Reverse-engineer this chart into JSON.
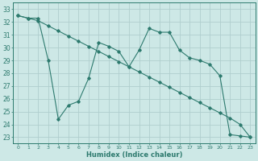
{
  "xlabel": "Humidex (Indice chaleur)",
  "ylabel": "",
  "background_color": "#cde8e6",
  "grid_color": "#b0cece",
  "line_color": "#2d7a6e",
  "xlim": [
    -0.5,
    23.5
  ],
  "ylim": [
    22.5,
    33.5
  ],
  "yticks": [
    23,
    24,
    25,
    26,
    27,
    28,
    29,
    30,
    31,
    32,
    33
  ],
  "xticks": [
    0,
    1,
    2,
    3,
    4,
    5,
    6,
    7,
    8,
    9,
    10,
    11,
    12,
    13,
    14,
    15,
    16,
    17,
    18,
    19,
    20,
    21,
    22,
    23
  ],
  "line1_x": [
    0,
    1,
    2,
    3,
    4,
    5,
    6,
    7,
    8,
    9,
    10,
    11,
    12,
    13,
    14,
    15,
    16,
    17,
    18,
    19,
    20,
    21,
    22,
    23
  ],
  "line1_y": [
    32.5,
    32.3,
    32.3,
    29.0,
    24.4,
    25.5,
    25.8,
    27.6,
    30.4,
    30.1,
    29.7,
    28.5,
    29.8,
    31.5,
    31.2,
    31.2,
    29.8,
    29.2,
    29.0,
    28.7,
    27.8,
    23.2,
    23.1,
    23.0
  ],
  "line2_x": [
    0,
    1,
    2,
    3,
    4,
    5,
    6,
    7,
    8,
    9,
    10,
    11,
    12,
    13,
    14,
    15,
    16,
    17,
    18,
    19,
    20,
    21,
    22,
    23
  ],
  "line2_y": [
    32.5,
    32.3,
    32.1,
    31.7,
    31.3,
    30.9,
    30.5,
    30.1,
    29.7,
    29.3,
    28.9,
    28.5,
    28.1,
    27.7,
    27.3,
    26.9,
    26.5,
    26.1,
    25.7,
    25.3,
    24.9,
    24.5,
    24.0,
    23.0
  ]
}
